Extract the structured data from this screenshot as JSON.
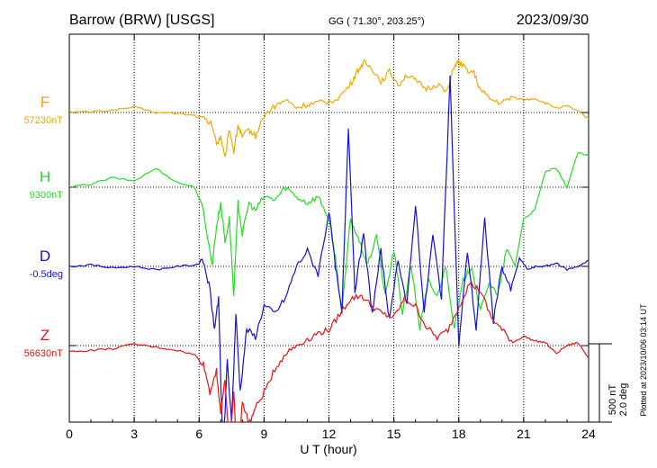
{
  "header": {
    "station": "Barrow (BRW)  [USGS]",
    "coords": "GG ( 71.30°, 203.25°)",
    "date": "2023/09/30"
  },
  "footer": {
    "plotted": "Plotted at 2023/10/06 03:14 UT",
    "scale_nt": "500 nT",
    "scale_deg": "2.0 deg"
  },
  "chart_data": {
    "type": "line",
    "xlabel": "U T (hour)",
    "xlim": [
      0,
      24
    ],
    "xticks": [
      0,
      3,
      6,
      9,
      12,
      15,
      18,
      21,
      24
    ],
    "grid": true,
    "series": [
      {
        "name": "F",
        "baseline_label": "57230nT",
        "color": "#f0a800",
        "x": [
          0,
          1,
          2,
          3,
          4,
          5,
          5.8,
          6.2,
          6.6,
          6.8,
          7.0,
          7.2,
          7.4,
          7.6,
          7.8,
          8.0,
          8.3,
          8.6,
          9.0,
          9.5,
          10,
          10.5,
          11,
          11.5,
          12,
          12.5,
          13,
          13.3,
          13.6,
          14,
          14.4,
          14.8,
          15.2,
          15.6,
          16,
          16.5,
          17,
          17.5,
          17.8,
          18,
          18.3,
          18.7,
          19,
          19.5,
          20,
          20.5,
          21,
          21.5,
          22,
          22.5,
          23,
          23.5,
          24
        ],
        "y": [
          0,
          5,
          15,
          35,
          0,
          -5,
          -20,
          -40,
          -80,
          -200,
          -150,
          -300,
          -100,
          -250,
          -80,
          -160,
          -110,
          -150,
          -20,
          40,
          80,
          30,
          50,
          60,
          70,
          100,
          180,
          260,
          320,
          280,
          200,
          260,
          180,
          240,
          200,
          150,
          180,
          140,
          300,
          320,
          280,
          250,
          140,
          80,
          60,
          100,
          80,
          90,
          60,
          30,
          40,
          10,
          -40
        ]
      },
      {
        "name": "H",
        "baseline_label": "9300nT",
        "color": "#22dd22",
        "x": [
          0,
          1,
          2,
          3,
          4,
          5,
          5.8,
          6.2,
          6.6,
          6.8,
          7.0,
          7.2,
          7.4,
          7.6,
          7.8,
          8.0,
          8.3,
          8.6,
          9.0,
          9.5,
          10,
          10.5,
          11,
          11.5,
          12,
          12.3,
          12.6,
          13,
          13.4,
          13.8,
          14.2,
          14.6,
          15,
          15.4,
          15.8,
          16.2,
          16.6,
          17,
          17.4,
          17.8,
          18.2,
          18.6,
          19,
          19.4,
          19.8,
          20.2,
          20.6,
          21,
          21.5,
          22,
          22.5,
          23,
          23.5,
          24
        ],
        "y": [
          0,
          20,
          60,
          40,
          120,
          30,
          0,
          -150,
          -500,
          -250,
          -100,
          -350,
          -200,
          -700,
          -100,
          -300,
          -100,
          -150,
          -60,
          -80,
          0,
          -60,
          -100,
          -60,
          -200,
          -450,
          -800,
          -200,
          -350,
          -500,
          -300,
          -700,
          -400,
          -800,
          -500,
          -900,
          -600,
          -700,
          -500,
          -900,
          -600,
          -500,
          -800,
          -600,
          -700,
          -400,
          -500,
          -200,
          -150,
          100,
          120,
          0,
          220,
          200
        ]
      },
      {
        "name": "D",
        "baseline_label": "-0.5deg",
        "color": "#1111dd",
        "x": [
          0,
          1,
          2,
          3,
          4,
          5,
          5.8,
          6.2,
          6.5,
          6.7,
          6.9,
          7.1,
          7.3,
          7.5,
          7.7,
          7.9,
          8.2,
          8.6,
          9.0,
          9.5,
          10,
          10.5,
          11,
          11.5,
          12,
          12.3,
          12.6,
          12.9,
          13.2,
          13.6,
          14,
          14.4,
          14.8,
          15.2,
          15.6,
          16,
          16.4,
          16.8,
          17.2,
          17.6,
          18,
          18.4,
          18.8,
          19.2,
          19.6,
          20,
          20.4,
          20.8,
          21.2,
          21.6,
          22,
          22.5,
          23,
          23.5,
          24
        ],
        "y": [
          0,
          10,
          -10,
          0,
          -20,
          0,
          10,
          30,
          -150,
          -400,
          -200,
          -1250,
          -600,
          -1000,
          -300,
          -800,
          -400,
          -450,
          -250,
          -300,
          -200,
          0,
          100,
          -50,
          350,
          0,
          -300,
          900,
          -150,
          200,
          -300,
          100,
          -350,
          50,
          -250,
          400,
          -300,
          200,
          -200,
          1200,
          -500,
          100,
          -400,
          300,
          -350,
          0,
          -150,
          50,
          -20,
          0,
          0,
          20,
          -20,
          0,
          40
        ]
      },
      {
        "name": "Z",
        "baseline_label": "56630nT",
        "color": "#ee1111",
        "x": [
          0,
          1,
          2,
          3,
          4,
          5,
          5.8,
          6.2,
          6.5,
          6.8,
          7.0,
          7.2,
          7.4,
          7.6,
          7.8,
          8.0,
          8.3,
          8.6,
          9.0,
          9.5,
          10,
          10.5,
          11,
          11.5,
          12,
          12.5,
          13,
          13.5,
          14,
          14.5,
          15,
          15.5,
          16,
          16.5,
          17,
          17.5,
          18,
          18.5,
          19,
          19.5,
          20,
          20.5,
          21,
          21.5,
          22,
          22.5,
          23,
          23.5,
          24
        ],
        "y": [
          -40,
          -30,
          -20,
          10,
          -10,
          -30,
          -60,
          -120,
          -300,
          -150,
          -450,
          -200,
          -700,
          -300,
          -800,
          -350,
          -500,
          -400,
          -300,
          -150,
          -50,
          0,
          40,
          80,
          100,
          200,
          300,
          320,
          250,
          200,
          180,
          300,
          250,
          120,
          50,
          100,
          250,
          400,
          350,
          180,
          100,
          20,
          60,
          30,
          20,
          -50,
          0,
          20,
          -80
        ]
      }
    ]
  }
}
